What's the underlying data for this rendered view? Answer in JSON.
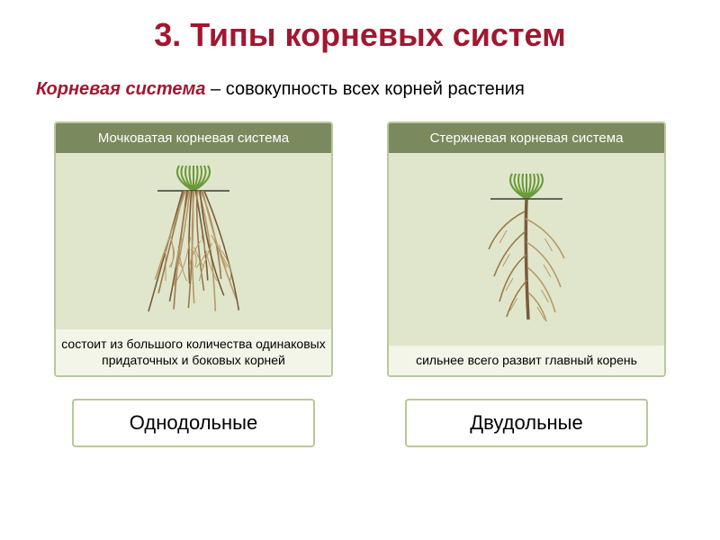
{
  "title": {
    "text": "3. Типы корневых систем",
    "color": "#a01830",
    "fontsize": 36
  },
  "definition": {
    "term": "Корневая система",
    "term_color": "#a01830",
    "separator": " – ",
    "text": "совокупность всех корней растения",
    "fontsize": 20
  },
  "colors": {
    "card_border": "#b8c99a",
    "card_header_bg": "#7a8a5e",
    "card_image_bg": "#dfe6cb",
    "card_footer_bg": "#f2f5e8",
    "label_border": "#b8c99a",
    "root_dark": "#7a5a3a",
    "root_mid": "#9a7a4a",
    "root_light": "#b89868",
    "grass_green": "#6a9a3a",
    "soil_line": "#3a3a3a"
  },
  "cards": [
    {
      "header": "Мочковатая корневая система",
      "footer": "состоит из большого количества одинаковых придаточных и боковых корней",
      "root_type": "fibrous"
    },
    {
      "header": "Стержневая корневая система",
      "footer": "сильнее всего развит главный корень",
      "root_type": "tap"
    }
  ],
  "labels": [
    "Однодольные",
    "Двудольные"
  ]
}
